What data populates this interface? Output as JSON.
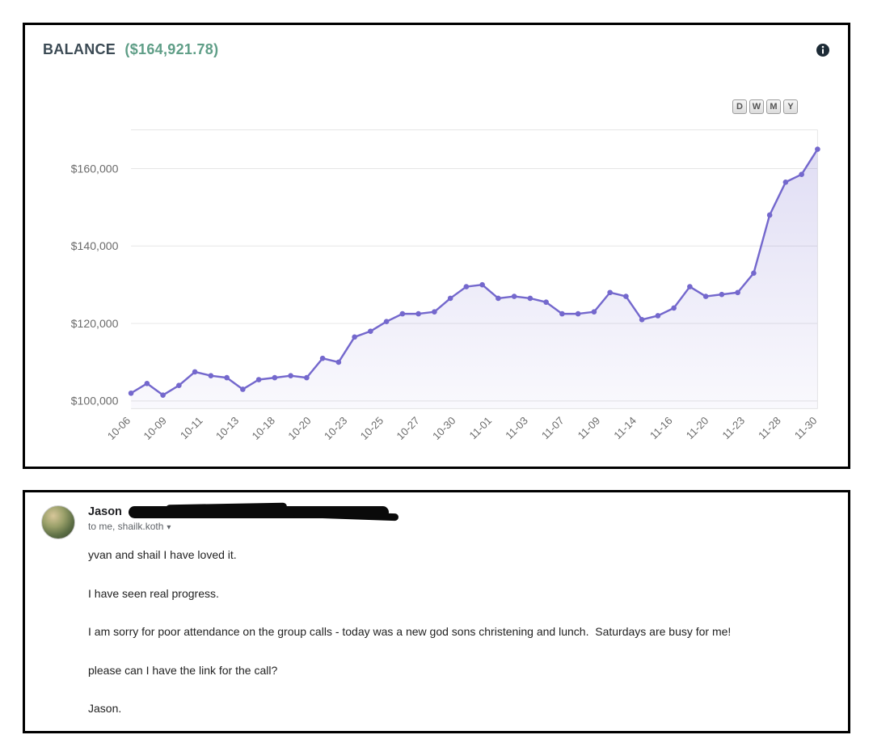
{
  "colors": {
    "accent_purple": "#7468cd",
    "amount_green": "#5f9e87",
    "title_dark": "#3b4a54",
    "grid_gray": "#e5e5e5",
    "axis_text": "#6b6b6b"
  },
  "balance_panel": {
    "title": "BALANCE",
    "amount": "($164,921.78)",
    "info_icon": "info-icon",
    "range_buttons": [
      "D",
      "W",
      "M",
      "Y"
    ]
  },
  "chart_data": {
    "type": "area",
    "title": "BALANCE ($164,921.78)",
    "xlabel": "",
    "ylabel": "",
    "grid": "horizontal",
    "legend_position": "none",
    "line_color": "#7468cd",
    "fill_opacity_top": 0.22,
    "fill_opacity_bottom": 0.04,
    "ylim": [
      98000,
      170000
    ],
    "y_tick_values": [
      100000,
      120000,
      140000,
      160000
    ],
    "y_tick_labels": [
      "$100,000",
      "$120,000",
      "$140,000",
      "$160,000"
    ],
    "x_tick_labels": [
      "10-06",
      "10-09",
      "10-11",
      "10-13",
      "10-18",
      "10-20",
      "10-23",
      "10-25",
      "10-27",
      "10-30",
      "11-01",
      "11-03",
      "11-07",
      "11-09",
      "11-14",
      "11-16",
      "11-20",
      "11-23",
      "11-28",
      "11-30"
    ],
    "values": [
      102000,
      104500,
      101500,
      104000,
      107500,
      106500,
      106000,
      103000,
      105500,
      106000,
      106500,
      106000,
      111000,
      110000,
      116500,
      118000,
      120500,
      122500,
      122500,
      123000,
      126500,
      129500,
      130000,
      126500,
      127000,
      126500,
      125500,
      122500,
      122500,
      123000,
      128000,
      127000,
      121000,
      122000,
      124000,
      129500,
      127000,
      127500,
      128000,
      133000,
      148000,
      156500,
      158500,
      165000
    ]
  },
  "email_panel": {
    "sender_name": "Jason",
    "sender_email_redacted": true,
    "recipients_line": "to me, shailk.koth",
    "caret": "▾",
    "paragraphs": [
      "yvan and shail I have loved it.",
      "I have seen real progress.",
      "I am sorry for poor attendance on the group calls - today was a new god sons christening and lunch.  Saturdays are busy for me!",
      "please can I have the link for the call?",
      "Jason."
    ]
  }
}
